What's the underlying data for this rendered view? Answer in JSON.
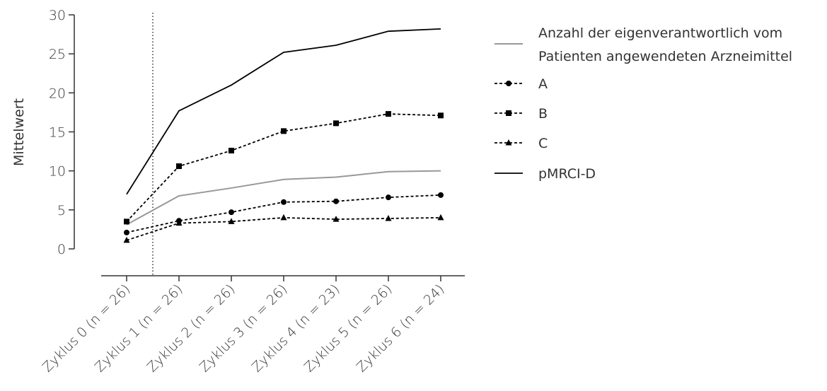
{
  "chart_data": {
    "type": "line",
    "ylabel": "Mittelwert",
    "xlabel": "",
    "ylim": [
      0,
      30
    ],
    "yticks": [
      0,
      5,
      10,
      15,
      20,
      25,
      30
    ],
    "categories": [
      "Zyklus 0 (n = 26)",
      "Zyklus 1 (n = 26)",
      "Zyklus 2 (n = 26)",
      "Zyklus 3 (n = 26)",
      "Zyklus 4 (n = 23)",
      "Zyklus 5 (n = 26)",
      "Zyklus 6 (n = 24)"
    ],
    "reference_line": {
      "style": "dotted",
      "between_categories": [
        0,
        1
      ]
    },
    "grid": false,
    "legend_position": "right",
    "series": [
      {
        "name": "Anzahl der eigenverantwortlich vom Patienten angewendeten Arzneimittel",
        "legend_lines": [
          "Anzahl der eigenverantwortlich vom",
          "Patienten angewendeten Arzneimittel"
        ],
        "values": [
          3.1,
          6.8,
          7.8,
          8.9,
          9.2,
          9.9,
          10.0
        ],
        "color": "#999999",
        "line_style": "solid",
        "marker": "none"
      },
      {
        "name": "A",
        "values": [
          2.1,
          3.6,
          4.7,
          6.0,
          6.1,
          6.6,
          6.9
        ],
        "color": "#000000",
        "line_style": "dashed",
        "marker": "circle"
      },
      {
        "name": "B",
        "values": [
          3.5,
          10.6,
          12.6,
          15.1,
          16.1,
          17.3,
          17.1
        ],
        "color": "#000000",
        "line_style": "dashed",
        "marker": "square"
      },
      {
        "name": "C",
        "values": [
          1.1,
          3.3,
          3.5,
          4.0,
          3.8,
          3.9,
          4.0
        ],
        "color": "#000000",
        "line_style": "dashed",
        "marker": "triangle"
      },
      {
        "name": "pMRCI-D",
        "values": [
          7.0,
          17.7,
          21.0,
          25.2,
          26.1,
          27.9,
          28.2
        ],
        "color": "#000000",
        "line_style": "solid",
        "marker": "none"
      }
    ]
  }
}
